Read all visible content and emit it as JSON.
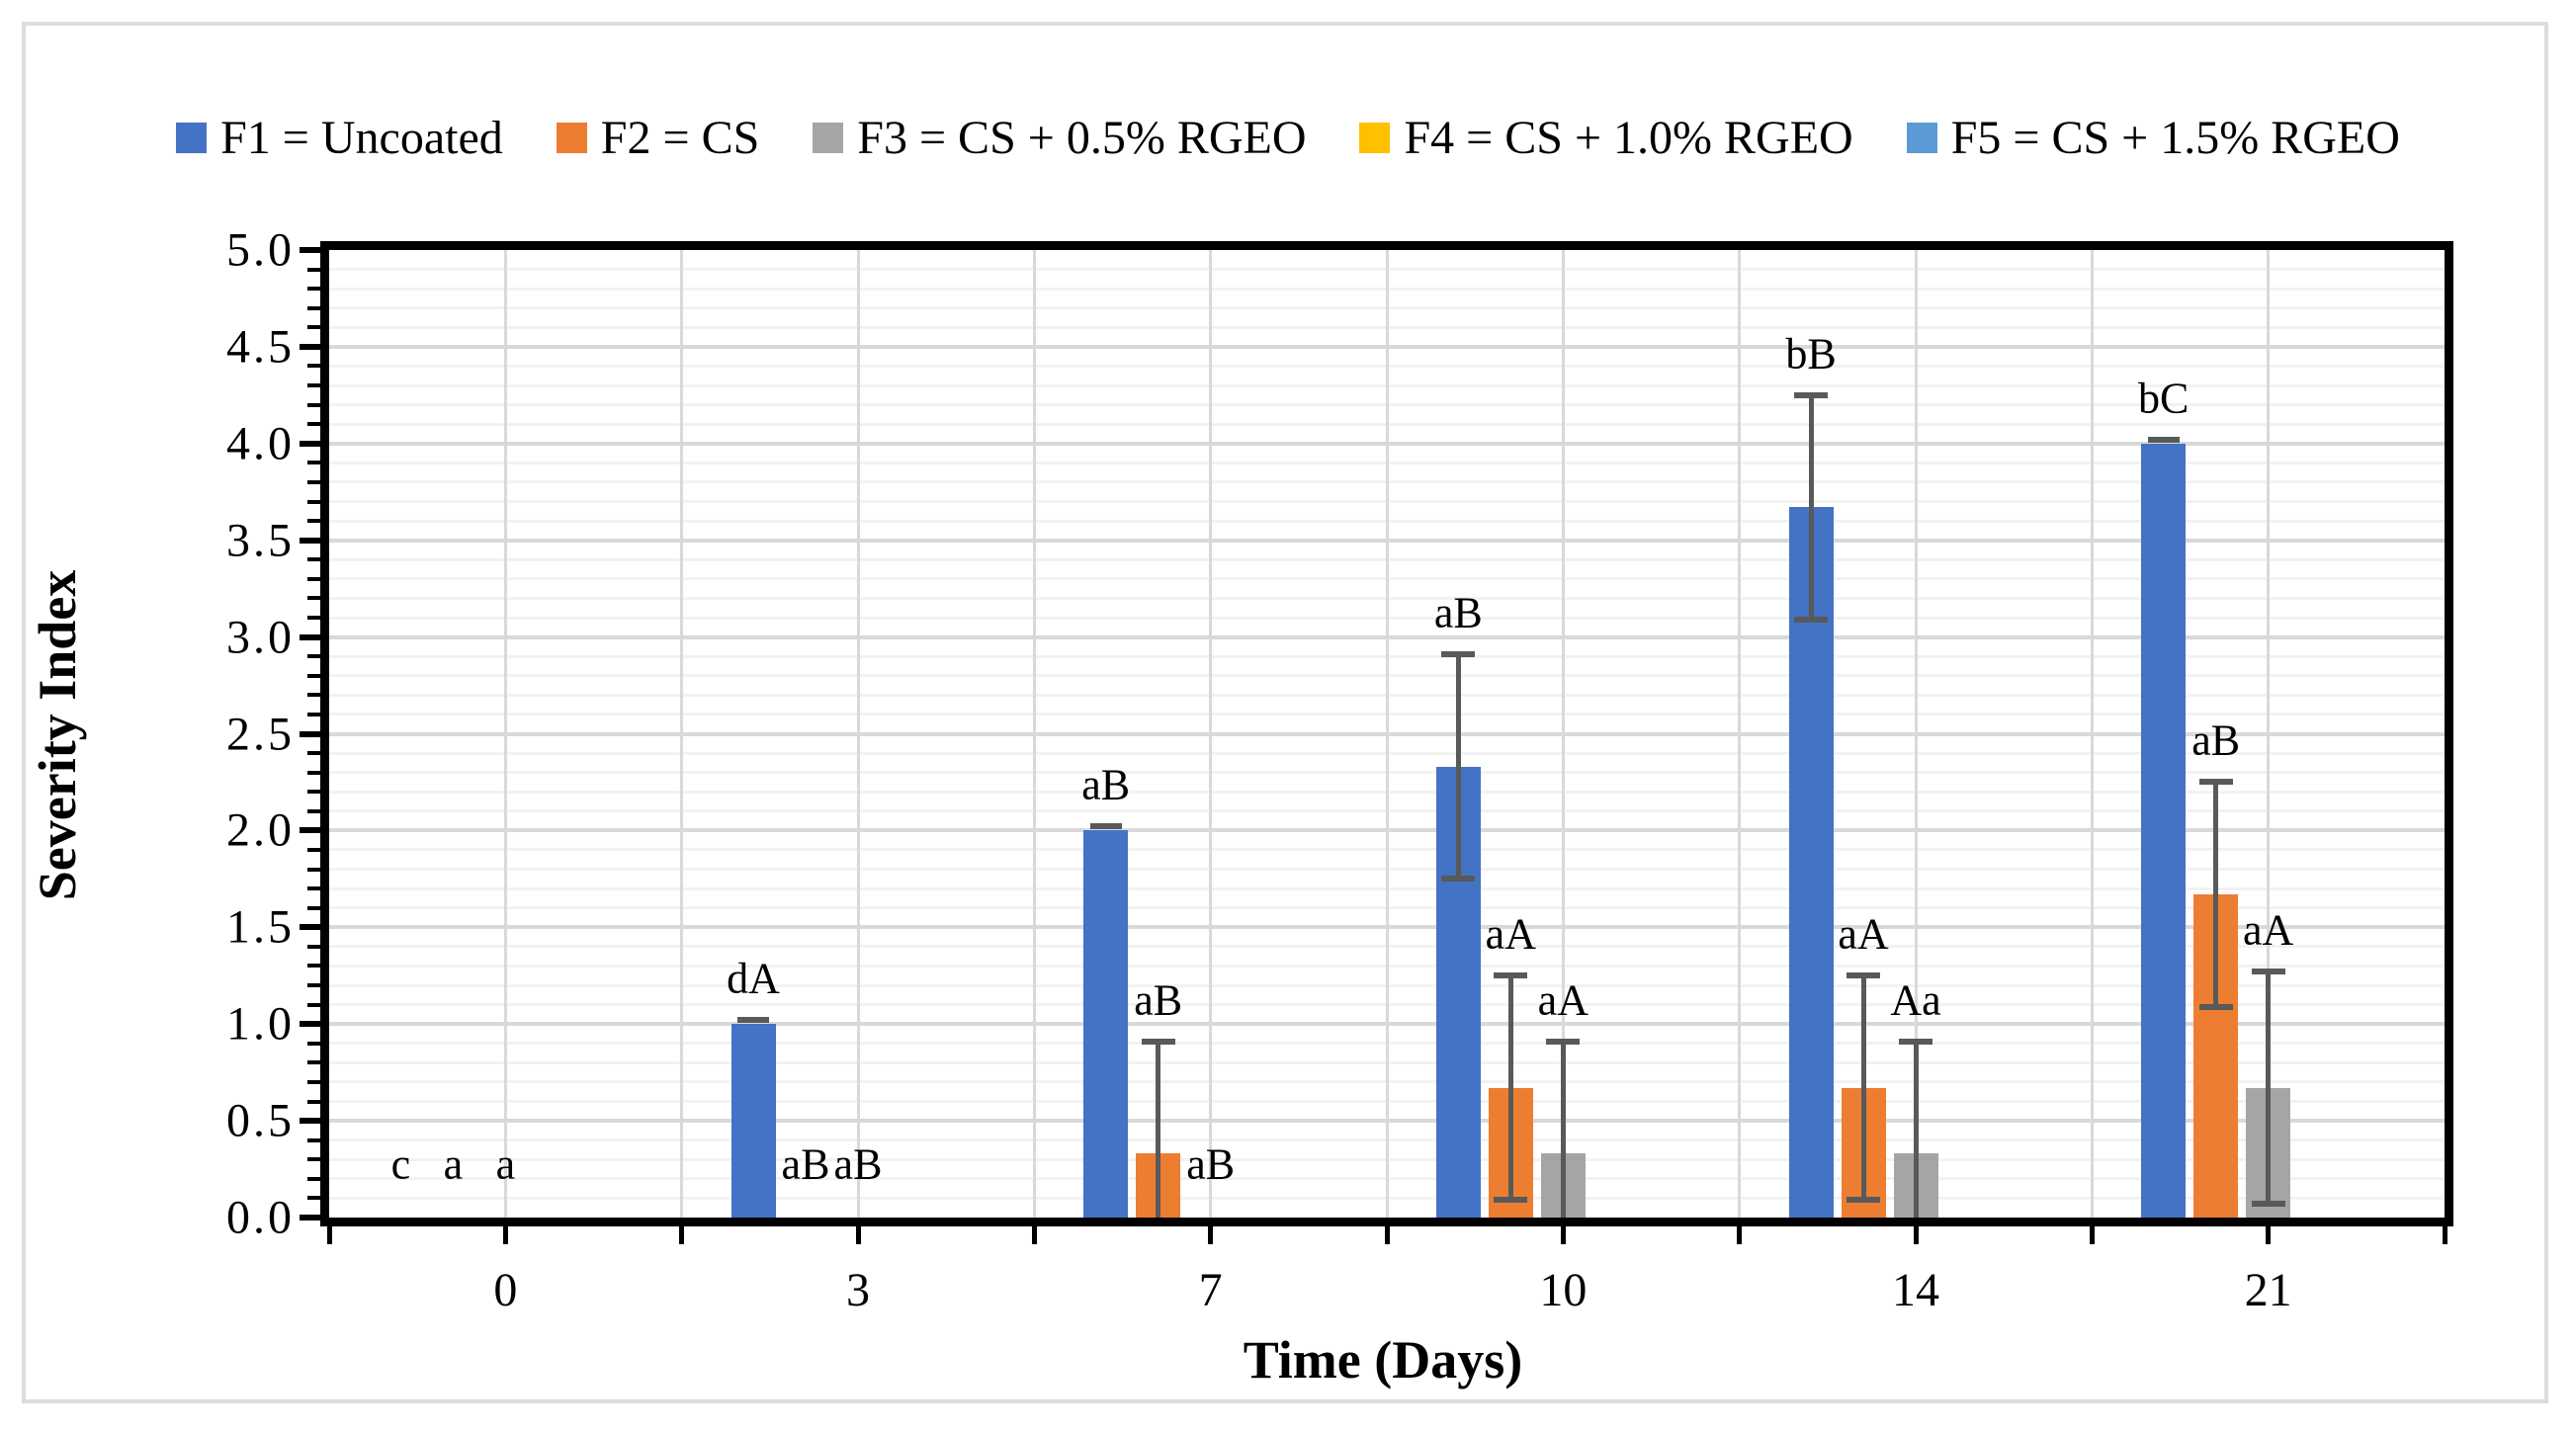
{
  "figure": {
    "background": "#FFFFFF",
    "border_color": "#DCDCDC"
  },
  "chart_data": {
    "type": "bar",
    "title": "",
    "xlabel": "Time (Days)",
    "ylabel": "Severity Index",
    "categories": [
      "0",
      "3",
      "7",
      "10",
      "14",
      "21"
    ],
    "ylim": [
      0,
      5
    ],
    "y_major_tick": 0.5,
    "y_minor_tick": 0.1,
    "y_tick_labels": [
      "0.0",
      "0.5",
      "1.0",
      "1.5",
      "2.0",
      "2.5",
      "3.0",
      "3.5",
      "4.0",
      "4.5",
      "5.0"
    ],
    "grid": true,
    "legend_position": "top",
    "error_bar_color": "#595959",
    "major_grid_color": "#D9D9D9",
    "minor_grid_color": "#F2F2F2",
    "series": [
      {
        "name": "F1 = Uncoated",
        "color": "#4472C4",
        "values": [
          0,
          1,
          2,
          2.33,
          3.67,
          4
        ],
        "errors": [
          0,
          0.02,
          0.02,
          0.58,
          0.58,
          0.02
        ],
        "point_labels": [
          "c",
          "dA",
          "aB",
          "aB",
          "bB",
          "bC"
        ]
      },
      {
        "name": "F2 = CS",
        "color": "#ED7D31",
        "values": [
          0,
          0,
          0.33,
          0.67,
          0.67,
          1.67
        ],
        "errors": [
          0,
          0,
          0.58,
          0.58,
          0.58,
          0.58
        ],
        "point_labels": [
          "a",
          "aB",
          "aB",
          "aA",
          "aA",
          "aB"
        ]
      },
      {
        "name": "F3 = CS + 0.5% RGEO",
        "color": "#A5A5A5",
        "values": [
          0,
          0,
          0,
          0.33,
          0.33,
          0.67
        ],
        "errors": [
          0,
          0,
          0,
          0.58,
          0.58,
          0.6
        ],
        "point_labels": [
          "a",
          "aB",
          "aB",
          "aA",
          "Aa",
          "aA"
        ]
      },
      {
        "name": "F4 = CS + 1.0% RGEO",
        "color": "#FFC000",
        "values": [
          0,
          0,
          0,
          0,
          0,
          0
        ],
        "errors": [
          0,
          0,
          0,
          0,
          0,
          0
        ],
        "point_labels": [
          "",
          "",
          "",
          "",
          "",
          ""
        ]
      },
      {
        "name": "F5 = CS + 1.5% RGEO",
        "color": "#5B9BD5",
        "values": [
          0,
          0,
          0,
          0,
          0,
          0
        ],
        "errors": [
          0,
          0,
          0,
          0,
          0,
          0
        ],
        "point_labels": [
          "",
          "",
          "",
          "",
          "",
          ""
        ]
      }
    ]
  }
}
